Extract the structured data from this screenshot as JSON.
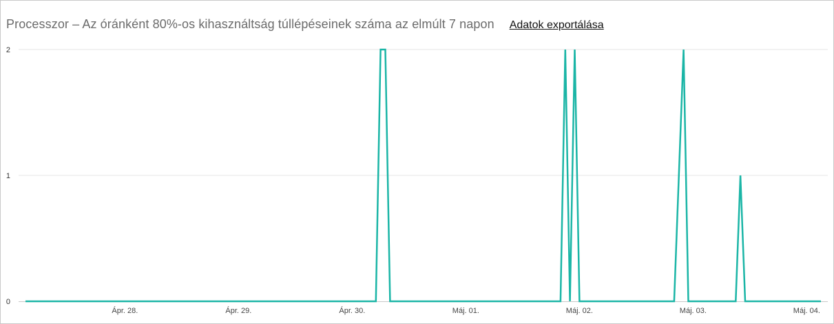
{
  "header": {
    "title": "Processzor – Az óránként 80%-os kihasználtság túllépéseinek száma az elmúlt 7 napon",
    "export_label": "Adatok exportálása"
  },
  "colors": {
    "series": "#1ab5a6",
    "grid": "#e6e6e6",
    "axis": "#c8c8c8"
  },
  "chart_data": {
    "type": "line",
    "title": "Processzor – Az óránként 80%-os kihasználtság túllépéseinek száma az elmúlt 7 napon",
    "xlabel": "",
    "ylabel": "",
    "x_ticks": [
      {
        "label": "Ápr. 28.",
        "hour": 21
      },
      {
        "label": "Ápr. 29.",
        "hour": 45
      },
      {
        "label": "Ápr. 30.",
        "hour": 69
      },
      {
        "label": "Máj. 01.",
        "hour": 93
      },
      {
        "label": "Máj. 02.",
        "hour": 117
      },
      {
        "label": "Máj. 03.",
        "hour": 141
      },
      {
        "label": "Máj. 04.",
        "hour": 165
      }
    ],
    "y_ticks": [
      0,
      1,
      2
    ],
    "ylim": [
      0,
      2
    ],
    "xlim": [
      21,
      2
    ],
    "grid": true,
    "series": [
      {
        "points": [
          [
            0,
            0
          ],
          [
            74,
            0
          ],
          [
            75,
            2
          ],
          [
            76,
            2
          ],
          [
            77,
            0
          ],
          [
            113,
            0
          ],
          [
            114,
            2
          ],
          [
            115,
            0
          ],
          [
            116,
            2
          ],
          [
            117,
            0
          ],
          [
            137,
            0
          ],
          [
            139,
            2
          ],
          [
            140,
            0
          ],
          [
            150,
            0
          ],
          [
            151,
            1
          ],
          [
            152,
            0
          ],
          [
            168,
            0
          ]
        ]
      }
    ]
  }
}
